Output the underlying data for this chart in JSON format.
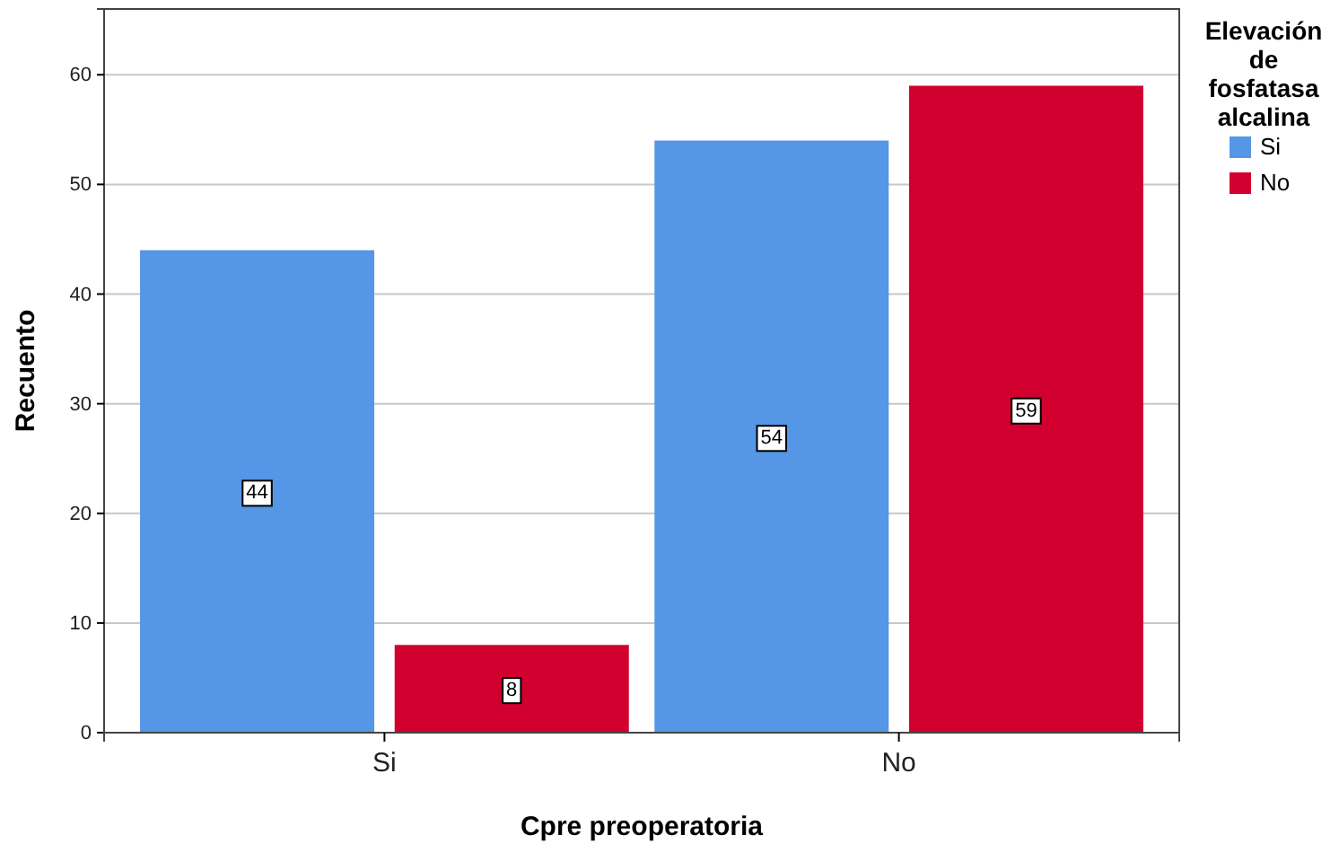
{
  "chart_data": {
    "type": "bar",
    "xlabel": "Cpre preoperatoria",
    "ylabel": "Recuento",
    "legend_title": "Elevación de fosfatasa alcalina",
    "categories": [
      "Si",
      "No"
    ],
    "series": [
      {
        "name": "Si",
        "color": "#5596e6",
        "values": [
          44,
          54
        ]
      },
      {
        "name": "No",
        "color": "#d2002e",
        "values": [
          8,
          59
        ]
      }
    ],
    "ylim": [
      0,
      66
    ],
    "yticks": [
      0,
      10,
      20,
      30,
      40,
      50,
      60
    ],
    "grid": "y",
    "legend": "right",
    "data_labels": true
  }
}
